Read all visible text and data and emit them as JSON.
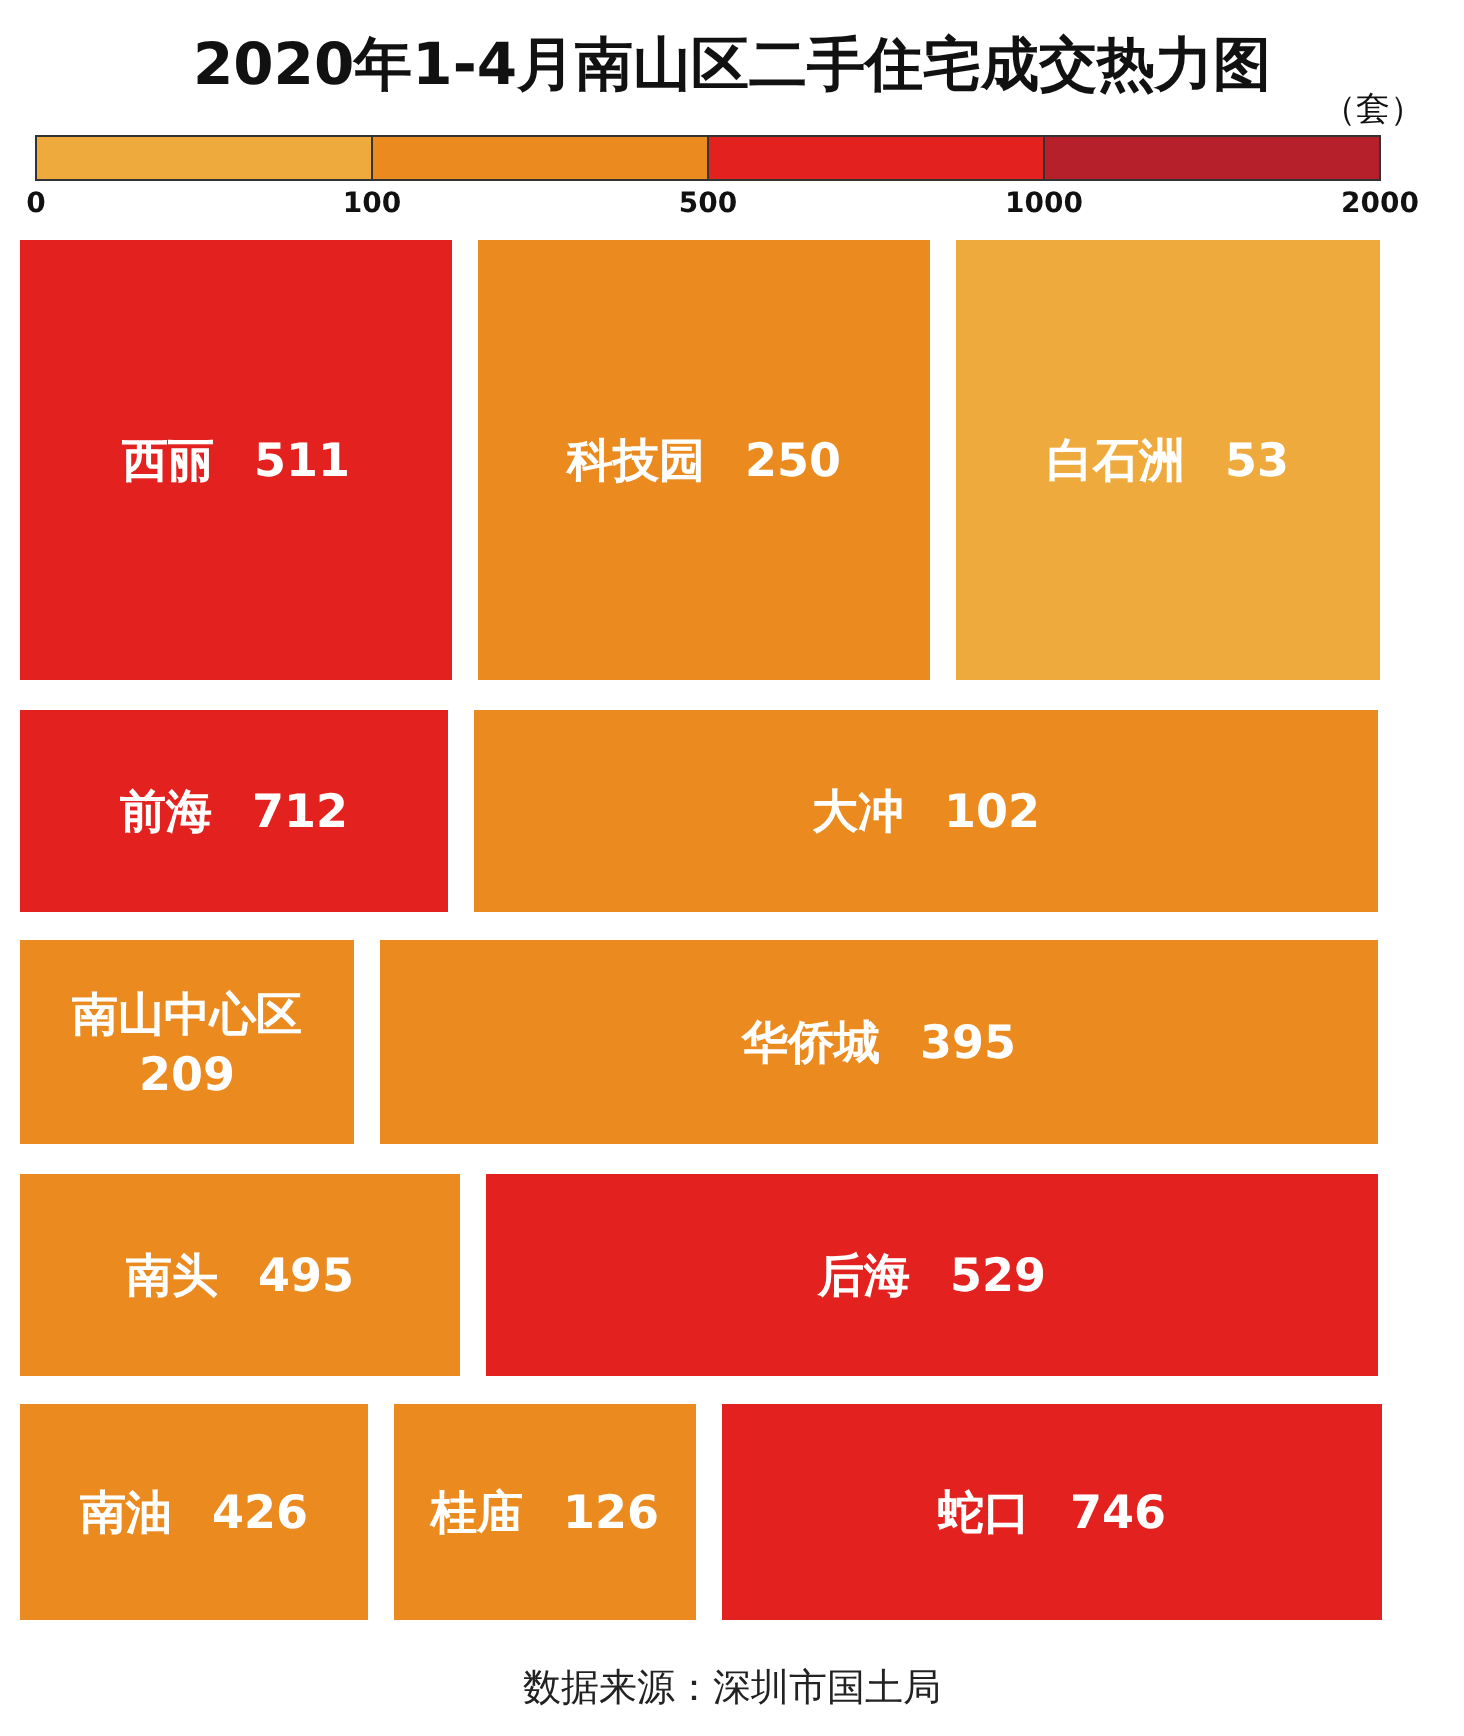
{
  "chart_data": {
    "type": "other",
    "title": "2020年1-4月南山区二手住宅成交热力图",
    "clabel": "（套）",
    "categories": [
      "西丽",
      "科技园",
      "白石洲",
      "前海",
      "大冲",
      "南山中心区",
      "华侨城",
      "南头",
      "后海",
      "南油",
      "桂庙",
      "蛇口"
    ],
    "values": [
      511,
      250,
      53,
      712,
      102,
      209,
      395,
      495,
      529,
      426,
      126,
      746
    ],
    "value_labels": [
      "511",
      "250",
      "53",
      "712",
      "102",
      "209",
      "395",
      "495",
      "529",
      "426",
      "126",
      "746"
    ],
    "colors": [
      "#e3211f",
      "#ea8a1f",
      "#eeaa3c",
      "#e3211f",
      "#ea8a1f",
      "#ea8a1f",
      "#ea8a1f",
      "#ea8a1f",
      "#e3211f",
      "#ea8a1f",
      "#ea8a1f",
      "#e3211f"
    ],
    "annotations": [
      "0",
      "100",
      "500",
      "1000",
      "2000",
      "数据来源：深圳市国土局"
    ]
  }
}
